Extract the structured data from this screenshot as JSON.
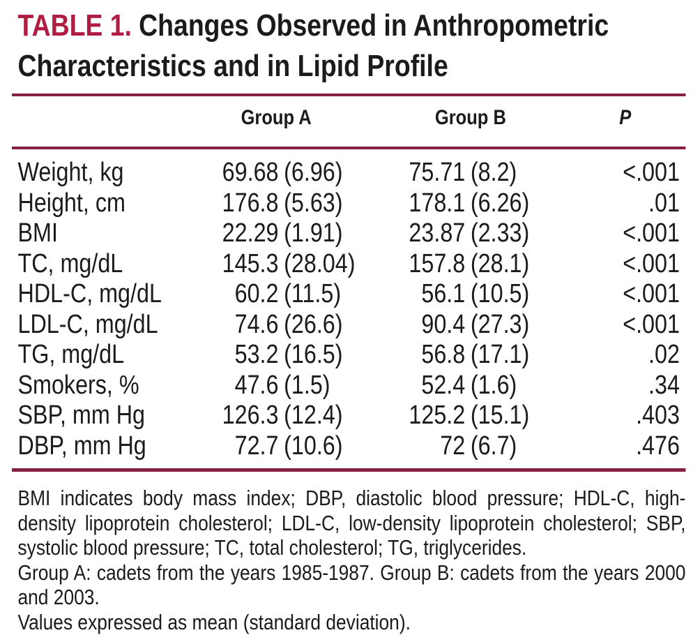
{
  "figure": {
    "label": "TABLE 1.",
    "title_full": "Changes Observed in Anthropometric Characteristics and in Lipid Profile",
    "title_lines": [
      "Changes Observed in Anthropometric",
      "Characteristics and in Lipid Profile"
    ],
    "columns": {
      "group_a": "Group A",
      "group_b": "Group B",
      "p": "P"
    },
    "rows": [
      {
        "label": "Weight, kg",
        "group_a_mean": "69.68",
        "group_a_sd": "(6.96)",
        "group_b_mean": "75.71",
        "group_b_sd": "(8.2)",
        "p": "<.001"
      },
      {
        "label": "Height, cm",
        "group_a_mean": "176.8",
        "group_a_sd": "(5.63)",
        "group_b_mean": "178.1",
        "group_b_sd": "(6.26)",
        "p": ".01"
      },
      {
        "label": "BMI",
        "group_a_mean": "22.29",
        "group_a_sd": "(1.91)",
        "group_b_mean": "23.87",
        "group_b_sd": "(2.33)",
        "p": "<.001"
      },
      {
        "label": "TC, mg/dL",
        "group_a_mean": "145.3",
        "group_a_sd": "(28.04)",
        "group_b_mean": "157.8",
        "group_b_sd": "(28.1)",
        "p": "<.001"
      },
      {
        "label": "HDL-C, mg/dL",
        "group_a_mean": "60.2",
        "group_a_sd": "(11.5)",
        "group_b_mean": "56.1",
        "group_b_sd": "(10.5)",
        "p": "<.001"
      },
      {
        "label": "LDL-C, mg/dL",
        "group_a_mean": "74.6",
        "group_a_sd": "(26.6)",
        "group_b_mean": "90.4",
        "group_b_sd": "(27.3)",
        "p": "<.001"
      },
      {
        "label": "TG, mg/dL",
        "group_a_mean": "53.2",
        "group_a_sd": "(16.5)",
        "group_b_mean": "56.8",
        "group_b_sd": "(17.1)",
        "p": ".02"
      },
      {
        "label": "Smokers, %",
        "group_a_mean": "47.6",
        "group_a_sd": "(1.5)",
        "group_b_mean": "52.4",
        "group_b_sd": "(1.6)",
        "p": ".34"
      },
      {
        "label": "SBP, mm Hg",
        "group_a_mean": "126.3",
        "group_a_sd": "(12.4)",
        "group_b_mean": "125.2",
        "group_b_sd": "(15.1)",
        "p": ".403"
      },
      {
        "label": "DBP, mm Hg",
        "group_a_mean": "72.7",
        "group_a_sd": "(10.6)",
        "group_b_mean": "72",
        "group_b_sd": "(6.7)",
        "p": ".476"
      }
    ],
    "footnotes": [
      "BMI indicates body mass index; DBP, diastolic blood pressure; HDL-C, high-density lipoprotein cholesterol; LDL-C, low-density lipoprotein cholesterol; SBP, systolic blood pressure; TC, total cholesterol; TG, triglycerides.",
      "Group A: cadets from the years 1985-1987. Group B: cadets from the years 2000 and 2003.",
      "Values expressed as mean (standard deviation)."
    ],
    "colors": {
      "accent_red": "#b01d42",
      "rule_maroon": "#86203f",
      "text_black": "#1b1b1b",
      "background": "#ffffff"
    }
  }
}
